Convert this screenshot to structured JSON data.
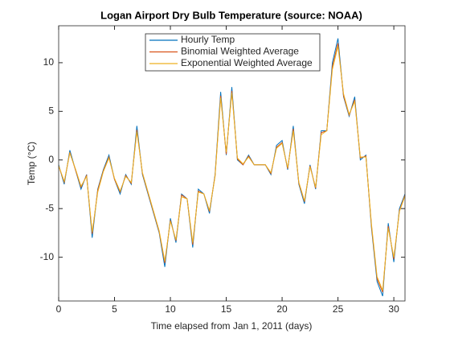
{
  "chart_data": {
    "type": "line",
    "title": "Logan Airport Dry Bulb Temperature (source: NOAA)",
    "xlabel": "Time elapsed from Jan 1, 2011 (days)",
    "ylabel": "Temp (°C)",
    "x": [
      0,
      0.5,
      1,
      1.5,
      2,
      2.5,
      3,
      3.5,
      4,
      4.5,
      5,
      5.5,
      6,
      6.5,
      7,
      7.5,
      8,
      8.5,
      9,
      9.5,
      10,
      10.5,
      11,
      11.5,
      12,
      12.5,
      13,
      13.5,
      14,
      14.5,
      15,
      15.5,
      16,
      16.5,
      17,
      17.5,
      18,
      18.5,
      19,
      19.5,
      20,
      20.5,
      21,
      21.5,
      22,
      22.5,
      23,
      23.5,
      24,
      24.5,
      25,
      25.5,
      26,
      26.5,
      27,
      27.5,
      28,
      28.5,
      29,
      29.5,
      30,
      30.5,
      31
    ],
    "series": [
      {
        "name": "Hourly Temp",
        "color": "#0072bd",
        "values": [
          -0.5,
          -2.5,
          1.0,
          -1.0,
          -3.0,
          -1.5,
          -8.0,
          -3.0,
          -1.0,
          0.5,
          -2.0,
          -3.5,
          -1.5,
          -2.5,
          3.5,
          -1.5,
          -3.5,
          -5.5,
          -7.5,
          -11.0,
          -6.0,
          -8.5,
          -3.5,
          -4.0,
          -9.0,
          -3.0,
          -3.5,
          -5.5,
          -1.5,
          7.0,
          0.5,
          7.5,
          0.0,
          -0.5,
          0.5,
          -0.5,
          -0.5,
          -0.5,
          -1.5,
          1.5,
          2.0,
          -1.0,
          3.5,
          -2.5,
          -4.5,
          -0.5,
          -3.0,
          3.0,
          3.0,
          10.0,
          12.5,
          6.5,
          4.5,
          6.5,
          0.0,
          0.5,
          -7.0,
          -12.5,
          -14.0,
          -6.5,
          -10.5,
          -5.0,
          -3.5
        ]
      },
      {
        "name": "Binomial Weighted Average",
        "color": "#d95319",
        "values": [
          -0.6,
          -2.3,
          0.8,
          -1.0,
          -2.8,
          -1.6,
          -7.6,
          -3.1,
          -1.1,
          0.3,
          -2.0,
          -3.3,
          -1.6,
          -2.4,
          3.1,
          -1.4,
          -3.4,
          -5.4,
          -7.4,
          -10.6,
          -6.2,
          -8.3,
          -3.6,
          -4.0,
          -8.7,
          -3.2,
          -3.5,
          -5.3,
          -1.6,
          6.6,
          0.6,
          7.1,
          0.1,
          -0.5,
          0.4,
          -0.5,
          -0.5,
          -0.5,
          -1.4,
          1.3,
          1.8,
          -0.9,
          3.2,
          -2.4,
          -4.3,
          -0.6,
          -2.9,
          2.8,
          3.0,
          9.6,
          12.0,
          6.6,
          4.6,
          6.2,
          0.2,
          0.4,
          -6.8,
          -12.2,
          -13.6,
          -6.8,
          -10.2,
          -5.2,
          -3.6
        ]
      },
      {
        "name": "Exponential Weighted Average",
        "color": "#edb120",
        "values": [
          -0.6,
          -2.2,
          0.7,
          -0.9,
          -2.7,
          -1.7,
          -7.4,
          -3.3,
          -1.2,
          0.2,
          -1.9,
          -3.2,
          -1.7,
          -2.3,
          2.9,
          -1.3,
          -3.3,
          -5.3,
          -7.3,
          -10.4,
          -6.3,
          -8.2,
          -3.8,
          -4.0,
          -8.5,
          -3.3,
          -3.5,
          -5.2,
          -1.7,
          6.4,
          0.8,
          6.9,
          0.2,
          -0.4,
          0.3,
          -0.5,
          -0.5,
          -0.5,
          -1.3,
          1.2,
          1.7,
          -0.8,
          3.0,
          -2.3,
          -4.2,
          -0.7,
          -2.8,
          2.6,
          3.0,
          9.3,
          11.7,
          6.8,
          4.7,
          6.0,
          0.3,
          0.3,
          -6.6,
          -12.0,
          -13.4,
          -7.0,
          -10.0,
          -5.3,
          -3.7
        ]
      }
    ],
    "xlim": [
      0,
      31
    ],
    "ylim": [
      -14.5,
      13.8
    ],
    "xticks": [
      0,
      5,
      10,
      15,
      20,
      25,
      30
    ],
    "yticks": [
      -10,
      -5,
      0,
      5,
      10
    ],
    "legend": "north"
  }
}
